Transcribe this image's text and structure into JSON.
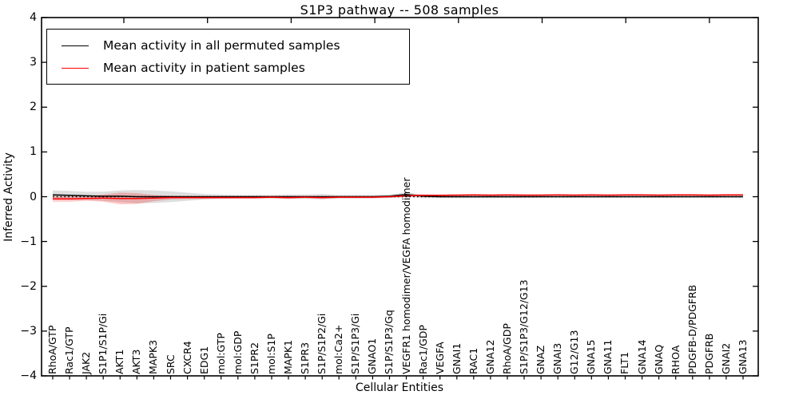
{
  "chart_data": {
    "type": "line",
    "title": "S1P3 pathway -- 508 samples",
    "xlabel": "Cellular Entities",
    "ylabel": "Inferred Activity",
    "ylim": [
      -4,
      4
    ],
    "yticks": [
      4,
      3,
      2,
      1,
      0,
      -1,
      -2,
      -3,
      -4
    ],
    "grid": false,
    "legend_position": "upper left",
    "zero_line": {
      "y": 0,
      "style": "dotted",
      "color": "#000000"
    },
    "categories": [
      "RhoA/GTP",
      "Rac1/GTP",
      "JAK2",
      "S1P1/S1P/Gi",
      "AKT1",
      "AKT3",
      "MAPK3",
      "SRC",
      "CXCR4",
      "EDG1",
      "mol:GTP",
      "mol:GDP",
      "S1PR2",
      "mol:S1P",
      "MAPK1",
      "S1PR3",
      "S1P/S1P2/Gi",
      "mol:Ca2+",
      "S1P/S1P3/Gi",
      "GNAO1",
      "S1P/S1P3/Gq",
      "VEGFR1 homodimer/VEGFA homodimer",
      "Rac1/GDP",
      "VEGFA",
      "GNAI1",
      "RAC1",
      "GNA12",
      "RhoA/GDP",
      "S1P/S1P3/G12/G13",
      "GNAZ",
      "GNAI3",
      "G12/G13",
      "GNA15",
      "GNA11",
      "FLT1",
      "GNA14",
      "GNAQ",
      "RHOA",
      "PDGFB-D/PDGFRB",
      "PDGFRB",
      "GNAI2",
      "GNA13"
    ],
    "series": [
      {
        "name": "Mean activity in all permuted samples",
        "color": "#000000",
        "values": [
          0.04,
          0.03,
          0.02,
          0.01,
          0.01,
          0.0,
          0.0,
          0.0,
          0.0,
          0.0,
          0.0,
          0.0,
          0.0,
          0.0,
          0.0,
          0.0,
          0.0,
          0.0,
          0.0,
          0.0,
          0.01,
          0.05,
          0.01,
          0.0,
          0.0,
          0.0,
          0.0,
          0.0,
          0.0,
          0.0,
          0.0,
          0.0,
          0.0,
          0.0,
          0.0,
          0.0,
          0.0,
          0.0,
          0.0,
          0.0,
          0.0,
          0.0
        ],
        "band_std": [
          0.1,
          0.1,
          0.09,
          0.1,
          0.13,
          0.15,
          0.14,
          0.12,
          0.09,
          0.06,
          0.05,
          0.04,
          0.04,
          0.04,
          0.05,
          0.05,
          0.06,
          0.04,
          0.04,
          0.04,
          0.04,
          0.05,
          0.04,
          0.03,
          0.03,
          0.03,
          0.03,
          0.03,
          0.03,
          0.02,
          0.02,
          0.02,
          0.02,
          0.02,
          0.02,
          0.02,
          0.02,
          0.02,
          0.02,
          0.02,
          0.02,
          0.02
        ]
      },
      {
        "name": "Mean activity in patient samples",
        "color": "#ff0000",
        "values": [
          -0.05,
          -0.05,
          -0.04,
          -0.03,
          -0.04,
          -0.04,
          -0.03,
          -0.02,
          -0.02,
          -0.02,
          -0.02,
          -0.02,
          -0.02,
          -0.01,
          -0.02,
          -0.01,
          -0.02,
          -0.01,
          -0.01,
          -0.01,
          0.0,
          0.02,
          0.03,
          0.03,
          0.035,
          0.04,
          0.035,
          0.04,
          0.035,
          0.035,
          0.04,
          0.035,
          0.04,
          0.035,
          0.04,
          0.04,
          0.035,
          0.04,
          0.04,
          0.035,
          0.04,
          0.04
        ],
        "band_std": [
          0.06,
          0.06,
          0.05,
          0.08,
          0.13,
          0.12,
          0.07,
          0.04,
          0.03,
          0.03,
          0.02,
          0.02,
          0.02,
          0.02,
          0.03,
          0.02,
          0.03,
          0.02,
          0.02,
          0.02,
          0.02,
          0.03,
          0.02,
          0.02,
          0.015,
          0.015,
          0.015,
          0.015,
          0.015,
          0.015,
          0.015,
          0.015,
          0.015,
          0.015,
          0.015,
          0.015,
          0.015,
          0.015,
          0.015,
          0.015,
          0.015,
          0.015
        ]
      }
    ]
  },
  "colors": {
    "axis": "#000000",
    "background": "#ffffff",
    "permuted_line": "#000000",
    "patient_line": "#ff0000"
  }
}
